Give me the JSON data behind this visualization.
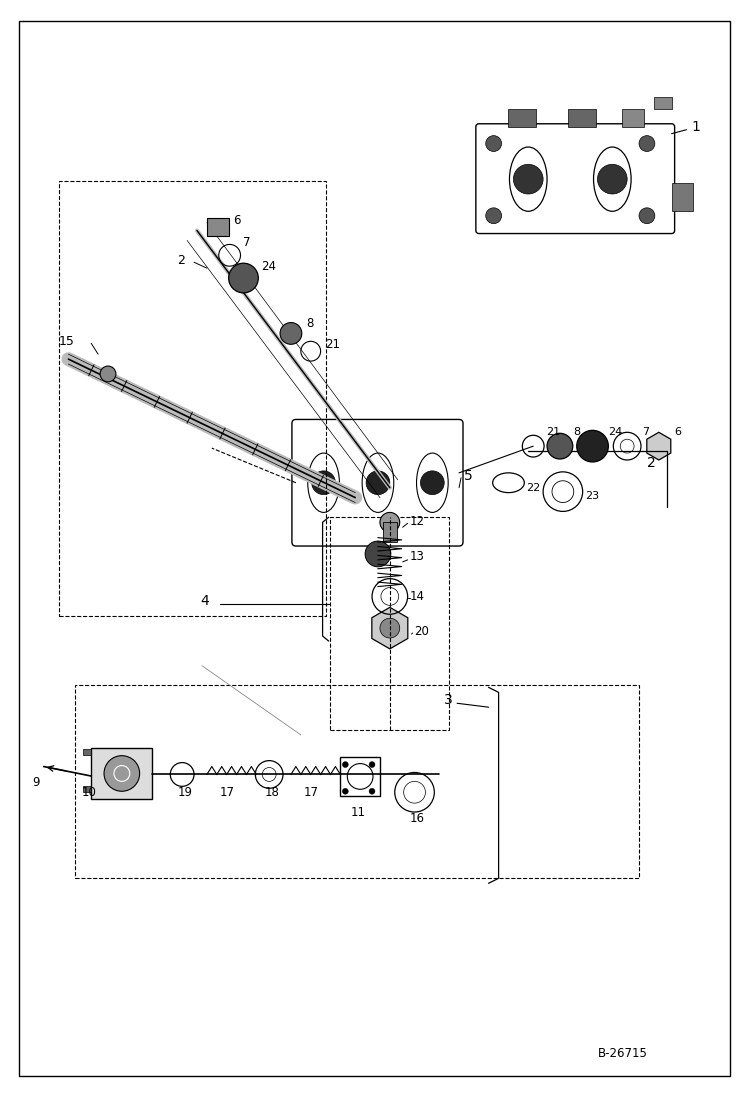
{
  "bg_color": "#ffffff",
  "line_color": "#000000",
  "fig_width": 7.49,
  "fig_height": 10.97,
  "watermark": "B-26715"
}
